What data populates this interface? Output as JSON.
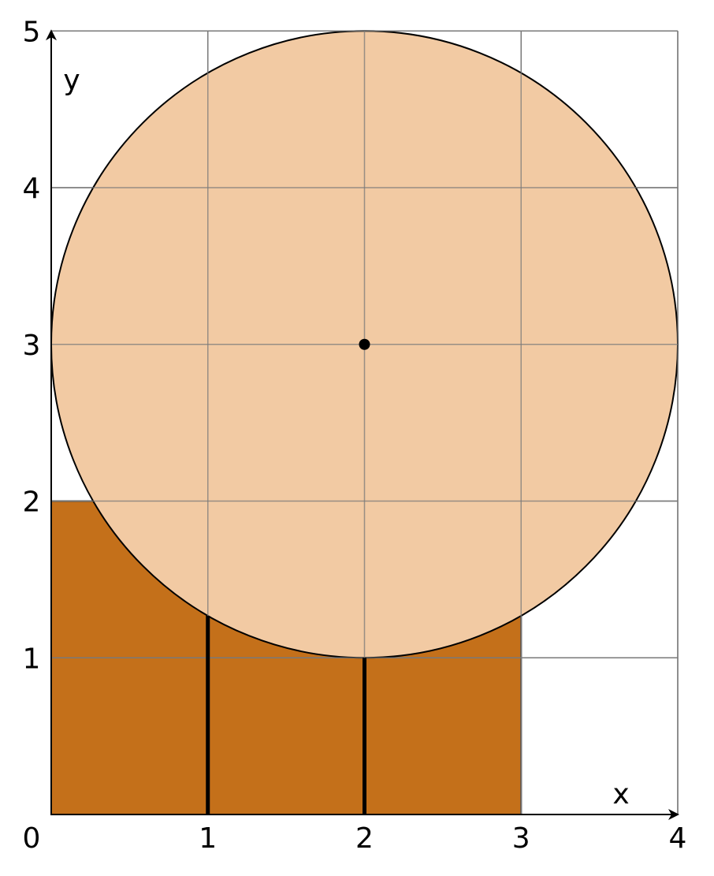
{
  "diagram": {
    "axes": {
      "x_label": "x",
      "y_label": "y",
      "x_ticks": [
        "0",
        "1",
        "2",
        "3",
        "4"
      ],
      "y_ticks": [
        "1",
        "2",
        "3",
        "4",
        "5"
      ],
      "x_range": [
        0,
        4
      ],
      "y_range": [
        0,
        5
      ],
      "grid": true
    },
    "rectangle": {
      "x_from": 0,
      "x_to": 3,
      "y_from": 0,
      "y_to": 2,
      "fill": "#c4701a"
    },
    "circle": {
      "center_x": 2,
      "center_y": 3,
      "radius": 2,
      "fill": "#f2caa3",
      "stroke": "#000000"
    },
    "center_point": {
      "x": 2,
      "y": 3,
      "color": "#000000"
    },
    "vertical_segments": [
      {
        "x": 1,
        "y_from": 0,
        "y_to": 1.268
      },
      {
        "x": 2,
        "y_from": 0,
        "y_to": 1
      }
    ]
  }
}
